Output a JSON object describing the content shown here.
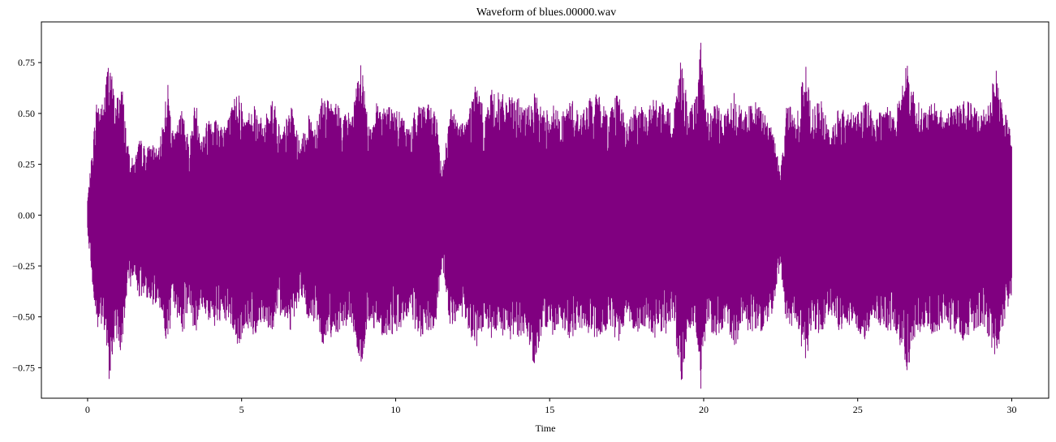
{
  "chart_data": {
    "type": "line",
    "title": "Waveform of blues.00000.wav",
    "xlabel": "Time",
    "ylabel": "",
    "xlim": [
      -1.5,
      31.2
    ],
    "ylim": [
      -0.9,
      0.95
    ],
    "x_ticks": [
      0,
      5,
      10,
      15,
      20,
      25,
      30
    ],
    "y_ticks": [
      -0.75,
      -0.5,
      -0.25,
      0.0,
      0.25,
      0.5,
      0.75
    ],
    "x_tick_labels": [
      "0",
      "5",
      "10",
      "15",
      "20",
      "25",
      "30"
    ],
    "y_tick_labels": [
      "−0.75",
      "−0.50",
      "−0.25",
      "0.00",
      "0.25",
      "0.50",
      "0.75"
    ],
    "grid": false,
    "series": [
      {
        "color": "#800080",
        "duration": 30.0,
        "envelope_max": [
          [
            0.0,
            0.08
          ],
          [
            0.1,
            0.24
          ],
          [
            0.3,
            0.58
          ],
          [
            0.5,
            0.55
          ],
          [
            0.7,
            0.81
          ],
          [
            0.9,
            0.55
          ],
          [
            1.1,
            0.68
          ],
          [
            1.3,
            0.35
          ],
          [
            1.5,
            0.26
          ],
          [
            1.7,
            0.38
          ],
          [
            1.9,
            0.33
          ],
          [
            2.1,
            0.36
          ],
          [
            2.3,
            0.31
          ],
          [
            2.6,
            0.66
          ],
          [
            2.8,
            0.38
          ],
          [
            3.1,
            0.55
          ],
          [
            3.3,
            0.35
          ],
          [
            3.5,
            0.58
          ],
          [
            3.7,
            0.39
          ],
          [
            4.0,
            0.52
          ],
          [
            4.3,
            0.46
          ],
          [
            4.6,
            0.49
          ],
          [
            4.9,
            0.65
          ],
          [
            5.1,
            0.47
          ],
          [
            5.4,
            0.57
          ],
          [
            5.7,
            0.45
          ],
          [
            6.0,
            0.6
          ],
          [
            6.3,
            0.4
          ],
          [
            6.6,
            0.55
          ],
          [
            6.9,
            0.35
          ],
          [
            7.2,
            0.5
          ],
          [
            7.4,
            0.45
          ],
          [
            7.6,
            0.6
          ],
          [
            7.9,
            0.55
          ],
          [
            8.1,
            0.56
          ],
          [
            8.3,
            0.5
          ],
          [
            8.6,
            0.52
          ],
          [
            8.9,
            0.78
          ],
          [
            9.1,
            0.45
          ],
          [
            9.4,
            0.56
          ],
          [
            9.7,
            0.55
          ],
          [
            10.0,
            0.52
          ],
          [
            10.2,
            0.5
          ],
          [
            10.5,
            0.42
          ],
          [
            10.7,
            0.58
          ],
          [
            11.0,
            0.55
          ],
          [
            11.3,
            0.52
          ],
          [
            11.5,
            0.22
          ],
          [
            11.8,
            0.55
          ],
          [
            12.0,
            0.46
          ],
          [
            12.3,
            0.48
          ],
          [
            12.6,
            0.66
          ],
          [
            12.9,
            0.5
          ],
          [
            13.1,
            0.62
          ],
          [
            13.4,
            0.6
          ],
          [
            13.7,
            0.58
          ],
          [
            14.0,
            0.58
          ],
          [
            14.2,
            0.52
          ],
          [
            14.5,
            0.6
          ],
          [
            14.8,
            0.52
          ],
          [
            15.1,
            0.55
          ],
          [
            15.4,
            0.5
          ],
          [
            15.7,
            0.58
          ],
          [
            16.0,
            0.5
          ],
          [
            16.3,
            0.58
          ],
          [
            16.6,
            0.6
          ],
          [
            16.9,
            0.5
          ],
          [
            17.2,
            0.63
          ],
          [
            17.5,
            0.45
          ],
          [
            17.8,
            0.55
          ],
          [
            18.1,
            0.52
          ],
          [
            18.4,
            0.58
          ],
          [
            18.7,
            0.55
          ],
          [
            19.0,
            0.5
          ],
          [
            19.3,
            0.82
          ],
          [
            19.5,
            0.5
          ],
          [
            19.8,
            0.6
          ],
          [
            19.9,
            0.88
          ],
          [
            20.1,
            0.5
          ],
          [
            20.4,
            0.55
          ],
          [
            20.7,
            0.5
          ],
          [
            21.0,
            0.62
          ],
          [
            21.3,
            0.5
          ],
          [
            21.6,
            0.57
          ],
          [
            21.9,
            0.52
          ],
          [
            22.2,
            0.45
          ],
          [
            22.5,
            0.22
          ],
          [
            22.7,
            0.58
          ],
          [
            23.0,
            0.46
          ],
          [
            23.3,
            0.76
          ],
          [
            23.5,
            0.52
          ],
          [
            23.8,
            0.57
          ],
          [
            24.1,
            0.42
          ],
          [
            24.4,
            0.55
          ],
          [
            24.7,
            0.5
          ],
          [
            25.0,
            0.52
          ],
          [
            25.3,
            0.58
          ],
          [
            25.6,
            0.48
          ],
          [
            25.9,
            0.55
          ],
          [
            26.2,
            0.52
          ],
          [
            26.6,
            0.75
          ],
          [
            26.9,
            0.57
          ],
          [
            27.2,
            0.52
          ],
          [
            27.5,
            0.56
          ],
          [
            27.8,
            0.5
          ],
          [
            28.1,
            0.55
          ],
          [
            28.4,
            0.58
          ],
          [
            28.7,
            0.55
          ],
          [
            29.0,
            0.52
          ],
          [
            29.2,
            0.55
          ],
          [
            29.5,
            0.72
          ],
          [
            29.7,
            0.55
          ],
          [
            29.9,
            0.45
          ],
          [
            30.0,
            0.41
          ]
        ],
        "envelope_min": [
          [
            0.0,
            -0.08
          ],
          [
            0.1,
            -0.24
          ],
          [
            0.3,
            -0.58
          ],
          [
            0.5,
            -0.55
          ],
          [
            0.7,
            -0.81
          ],
          [
            0.9,
            -0.6
          ],
          [
            1.1,
            -0.68
          ],
          [
            1.3,
            -0.4
          ],
          [
            1.5,
            -0.3
          ],
          [
            1.7,
            -0.42
          ],
          [
            1.9,
            -0.4
          ],
          [
            2.1,
            -0.45
          ],
          [
            2.3,
            -0.42
          ],
          [
            2.6,
            -0.66
          ],
          [
            2.8,
            -0.45
          ],
          [
            3.1,
            -0.6
          ],
          [
            3.3,
            -0.42
          ],
          [
            3.5,
            -0.62
          ],
          [
            3.7,
            -0.45
          ],
          [
            4.0,
            -0.55
          ],
          [
            4.3,
            -0.55
          ],
          [
            4.6,
            -0.52
          ],
          [
            4.9,
            -0.67
          ],
          [
            5.1,
            -0.55
          ],
          [
            5.4,
            -0.6
          ],
          [
            5.7,
            -0.52
          ],
          [
            6.0,
            -0.58
          ],
          [
            6.3,
            -0.48
          ],
          [
            6.6,
            -0.57
          ],
          [
            6.9,
            -0.4
          ],
          [
            7.2,
            -0.55
          ],
          [
            7.4,
            -0.52
          ],
          [
            7.6,
            -0.64
          ],
          [
            7.9,
            -0.6
          ],
          [
            8.1,
            -0.58
          ],
          [
            8.3,
            -0.55
          ],
          [
            8.6,
            -0.55
          ],
          [
            8.9,
            -0.78
          ],
          [
            9.1,
            -0.52
          ],
          [
            9.4,
            -0.58
          ],
          [
            9.7,
            -0.6
          ],
          [
            10.0,
            -0.58
          ],
          [
            10.2,
            -0.55
          ],
          [
            10.5,
            -0.48
          ],
          [
            10.7,
            -0.62
          ],
          [
            11.0,
            -0.6
          ],
          [
            11.3,
            -0.56
          ],
          [
            11.5,
            -0.25
          ],
          [
            11.8,
            -0.58
          ],
          [
            12.0,
            -0.5
          ],
          [
            12.3,
            -0.55
          ],
          [
            12.6,
            -0.67
          ],
          [
            12.9,
            -0.55
          ],
          [
            13.1,
            -0.62
          ],
          [
            13.4,
            -0.6
          ],
          [
            13.7,
            -0.62
          ],
          [
            14.0,
            -0.6
          ],
          [
            14.2,
            -0.58
          ],
          [
            14.5,
            -0.74
          ],
          [
            14.8,
            -0.55
          ],
          [
            15.1,
            -0.6
          ],
          [
            15.4,
            -0.55
          ],
          [
            15.7,
            -0.62
          ],
          [
            16.0,
            -0.55
          ],
          [
            16.3,
            -0.6
          ],
          [
            16.6,
            -0.62
          ],
          [
            16.9,
            -0.55
          ],
          [
            17.2,
            -0.65
          ],
          [
            17.5,
            -0.5
          ],
          [
            17.8,
            -0.58
          ],
          [
            18.1,
            -0.55
          ],
          [
            18.4,
            -0.62
          ],
          [
            18.7,
            -0.6
          ],
          [
            19.0,
            -0.55
          ],
          [
            19.3,
            -0.84
          ],
          [
            19.5,
            -0.55
          ],
          [
            19.8,
            -0.62
          ],
          [
            19.9,
            -0.88
          ],
          [
            20.1,
            -0.55
          ],
          [
            20.4,
            -0.6
          ],
          [
            20.7,
            -0.55
          ],
          [
            21.0,
            -0.65
          ],
          [
            21.3,
            -0.55
          ],
          [
            21.6,
            -0.6
          ],
          [
            21.9,
            -0.57
          ],
          [
            22.2,
            -0.5
          ],
          [
            22.5,
            -0.25
          ],
          [
            22.7,
            -0.6
          ],
          [
            23.0,
            -0.5
          ],
          [
            23.3,
            -0.78
          ],
          [
            23.5,
            -0.55
          ],
          [
            23.8,
            -0.6
          ],
          [
            24.1,
            -0.48
          ],
          [
            24.4,
            -0.58
          ],
          [
            24.7,
            -0.55
          ],
          [
            25.0,
            -0.58
          ],
          [
            25.3,
            -0.62
          ],
          [
            25.6,
            -0.52
          ],
          [
            25.9,
            -0.58
          ],
          [
            26.2,
            -0.57
          ],
          [
            26.6,
            -0.78
          ],
          [
            26.9,
            -0.6
          ],
          [
            27.2,
            -0.55
          ],
          [
            27.5,
            -0.6
          ],
          [
            27.8,
            -0.55
          ],
          [
            28.1,
            -0.58
          ],
          [
            28.4,
            -0.62
          ],
          [
            28.7,
            -0.58
          ],
          [
            29.0,
            -0.55
          ],
          [
            29.2,
            -0.58
          ],
          [
            29.5,
            -0.72
          ],
          [
            29.7,
            -0.58
          ],
          [
            29.9,
            -0.45
          ],
          [
            30.0,
            -0.41
          ]
        ]
      }
    ]
  }
}
